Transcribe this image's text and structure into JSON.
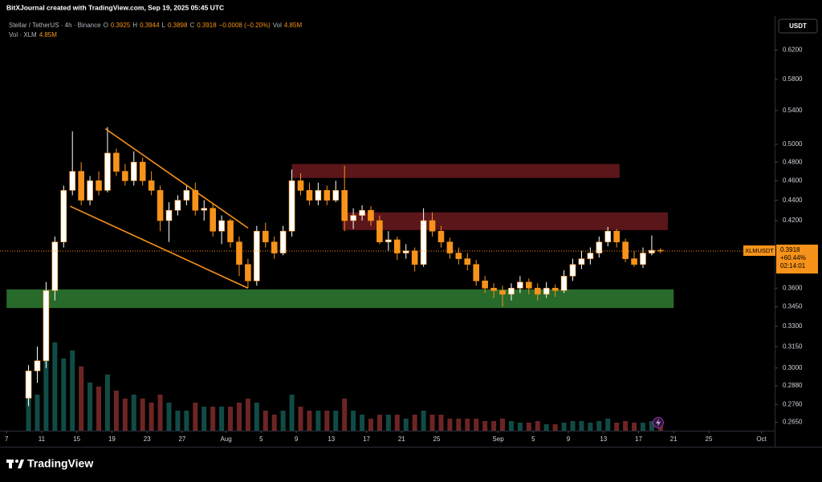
{
  "header": {
    "credit": "BitXJournal created with TradingView.com, Sep 19, 2025 05:45 UTC",
    "brand": "TradingView"
  },
  "chart_data": {
    "type": "candlestick",
    "symbol": "Stellar / TetherUS · 4h · Binance",
    "ohlc": [
      {
        "label": "O",
        "value": 0.3925
      },
      {
        "label": "H",
        "value": 0.3944
      },
      {
        "label": "L",
        "value": 0.3898
      },
      {
        "label": "C",
        "value": 0.3918
      }
    ],
    "change": "−0.0008 (−0.20%)",
    "vol_label": "Vol",
    "vol_value": "4.85M",
    "volume_title": "Vol · XLM",
    "volume_value": "4.85M",
    "currency": "USDT",
    "price_tag": {
      "symbol": "XLMUSDT",
      "value": 0.3918,
      "change": "+60.44%",
      "countdown": "02:14:01",
      "color": "#f7931a"
    },
    "x": [
      "2025-07-09",
      "2025-07-10",
      "2025-07-11",
      "2025-07-12",
      "2025-07-13",
      "2025-07-14",
      "2025-07-15",
      "2025-07-16",
      "2025-07-17",
      "2025-07-18",
      "2025-07-19",
      "2025-07-20",
      "2025-07-21",
      "2025-07-22",
      "2025-07-23",
      "2025-07-24",
      "2025-07-25",
      "2025-07-26",
      "2025-07-27",
      "2025-07-28",
      "2025-07-29",
      "2025-07-30",
      "2025-07-31",
      "2025-08-01",
      "2025-08-02",
      "2025-08-03",
      "2025-08-04",
      "2025-08-05",
      "2025-08-06",
      "2025-08-07",
      "2025-08-08",
      "2025-08-09",
      "2025-08-10",
      "2025-08-11",
      "2025-08-12",
      "2025-08-13",
      "2025-08-14",
      "2025-08-15",
      "2025-08-16",
      "2025-08-17",
      "2025-08-18",
      "2025-08-19",
      "2025-08-20",
      "2025-08-21",
      "2025-08-22",
      "2025-08-23",
      "2025-08-24",
      "2025-08-25",
      "2025-08-26",
      "2025-08-27",
      "2025-08-28",
      "2025-08-29",
      "2025-08-30",
      "2025-08-31",
      "2025-09-01",
      "2025-09-02",
      "2025-09-03",
      "2025-09-04",
      "2025-09-05",
      "2025-09-06",
      "2025-09-07",
      "2025-09-08",
      "2025-09-09",
      "2025-09-10",
      "2025-09-11",
      "2025-09-12",
      "2025-09-13",
      "2025-09-14",
      "2025-09-15",
      "2025-09-16",
      "2025-09-17",
      "2025-09-18",
      "2025-09-19"
    ],
    "open": [
      0.28,
      0.298,
      0.305,
      0.358,
      0.4,
      0.45,
      0.47,
      0.44,
      0.46,
      0.45,
      0.49,
      0.47,
      0.46,
      0.48,
      0.46,
      0.45,
      0.42,
      0.43,
      0.44,
      0.45,
      0.43,
      0.432,
      0.41,
      0.42,
      0.4,
      0.38,
      0.366,
      0.41,
      0.4,
      0.39,
      0.41,
      0.46,
      0.45,
      0.44,
      0.45,
      0.44,
      0.45,
      0.42,
      0.425,
      0.43,
      0.42,
      0.4,
      0.402,
      0.39,
      0.392,
      0.38,
      0.42,
      0.41,
      0.4,
      0.39,
      0.385,
      0.38,
      0.366,
      0.36,
      0.358,
      0.355,
      0.36,
      0.365,
      0.36,
      0.355,
      0.36,
      0.358,
      0.37,
      0.38,
      0.385,
      0.39,
      0.4,
      0.41,
      0.4,
      0.385,
      0.38,
      0.39,
      0.3925
    ],
    "high": [
      0.302,
      0.315,
      0.365,
      0.405,
      0.455,
      0.515,
      0.48,
      0.465,
      0.47,
      0.52,
      0.495,
      0.478,
      0.492,
      0.485,
      0.47,
      0.455,
      0.438,
      0.445,
      0.455,
      0.458,
      0.44,
      0.436,
      0.425,
      0.422,
      0.405,
      0.385,
      0.415,
      0.418,
      0.405,
      0.415,
      0.472,
      0.468,
      0.458,
      0.458,
      0.455,
      0.46,
      0.476,
      0.432,
      0.435,
      0.434,
      0.425,
      0.41,
      0.405,
      0.398,
      0.395,
      0.432,
      0.428,
      0.415,
      0.404,
      0.395,
      0.39,
      0.384,
      0.37,
      0.364,
      0.362,
      0.364,
      0.37,
      0.368,
      0.364,
      0.365,
      0.363,
      0.375,
      0.385,
      0.392,
      0.395,
      0.405,
      0.414,
      0.412,
      0.403,
      0.392,
      0.395,
      0.406,
      0.3944
    ],
    "low": [
      0.275,
      0.29,
      0.3,
      0.35,
      0.395,
      0.445,
      0.435,
      0.435,
      0.445,
      0.448,
      0.465,
      0.455,
      0.455,
      0.455,
      0.445,
      0.41,
      0.4,
      0.425,
      0.435,
      0.425,
      0.42,
      0.405,
      0.398,
      0.395,
      0.37,
      0.36,
      0.362,
      0.395,
      0.385,
      0.388,
      0.405,
      0.445,
      0.435,
      0.435,
      0.435,
      0.438,
      0.41,
      0.412,
      0.42,
      0.415,
      0.398,
      0.392,
      0.384,
      0.385,
      0.374,
      0.378,
      0.405,
      0.395,
      0.385,
      0.38,
      0.375,
      0.362,
      0.356,
      0.352,
      0.345,
      0.35,
      0.356,
      0.355,
      0.35,
      0.352,
      0.353,
      0.356,
      0.366,
      0.376,
      0.38,
      0.386,
      0.396,
      0.395,
      0.382,
      0.378,
      0.377,
      0.388,
      0.3898
    ],
    "close": [
      0.298,
      0.305,
      0.358,
      0.4,
      0.45,
      0.47,
      0.44,
      0.46,
      0.45,
      0.49,
      0.47,
      0.46,
      0.48,
      0.46,
      0.45,
      0.42,
      0.43,
      0.44,
      0.45,
      0.43,
      0.432,
      0.41,
      0.42,
      0.4,
      0.38,
      0.366,
      0.41,
      0.4,
      0.39,
      0.41,
      0.46,
      0.45,
      0.44,
      0.45,
      0.44,
      0.45,
      0.42,
      0.425,
      0.43,
      0.42,
      0.4,
      0.402,
      0.39,
      0.392,
      0.38,
      0.42,
      0.41,
      0.4,
      0.39,
      0.385,
      0.38,
      0.366,
      0.36,
      0.358,
      0.355,
      0.36,
      0.365,
      0.36,
      0.355,
      0.36,
      0.358,
      0.37,
      0.38,
      0.385,
      0.39,
      0.4,
      0.41,
      0.4,
      0.385,
      0.38,
      0.39,
      0.3925,
      0.3918
    ],
    "volume": [
      40,
      45,
      130,
      110,
      90,
      100,
      80,
      60,
      55,
      70,
      50,
      40,
      45,
      40,
      35,
      45,
      35,
      25,
      25,
      35,
      30,
      30,
      30,
      30,
      35,
      40,
      35,
      25,
      20,
      25,
      45,
      30,
      25,
      25,
      25,
      25,
      40,
      25,
      20,
      15,
      20,
      20,
      20,
      15,
      20,
      25,
      20,
      20,
      15,
      15,
      15,
      15,
      12,
      12,
      15,
      12,
      10,
      10,
      12,
      8,
      8,
      10,
      12,
      12,
      10,
      12,
      15,
      10,
      12,
      10,
      10,
      12,
      8
    ],
    "up_color": "#ffffff",
    "down_color": "#f7931a",
    "ylim": [
      0.26,
      0.67
    ],
    "log_scale": true,
    "yticks": [
      {
        "value": 0.62,
        "label": "0.6200"
      },
      {
        "value": 0.58,
        "label": "0.5800"
      },
      {
        "value": 0.54,
        "label": "0.5400"
      },
      {
        "value": 0.5,
        "label": "0.5000"
      },
      {
        "value": 0.48,
        "label": "0.4800"
      },
      {
        "value": 0.46,
        "label": "0.4600"
      },
      {
        "value": 0.44,
        "label": "0.4400"
      },
      {
        "value": 0.42,
        "label": "0.4200"
      },
      {
        "value": 0.36,
        "label": "0.3600"
      },
      {
        "value": 0.345,
        "label": "0.3450"
      },
      {
        "value": 0.33,
        "label": "0.3300"
      },
      {
        "value": 0.315,
        "label": "0.3150"
      },
      {
        "value": 0.3,
        "label": "0.3000"
      },
      {
        "value": 0.288,
        "label": "0.2880"
      },
      {
        "value": 0.276,
        "label": "0.2760"
      },
      {
        "value": 0.265,
        "label": "0.2650"
      }
    ],
    "xlim": [
      "2025-07-06T06:00",
      "2025-10-02T12:00"
    ],
    "xticks": [
      {
        "value": "2025-07-07",
        "label": "7"
      },
      {
        "value": "2025-07-11",
        "label": "11"
      },
      {
        "value": "2025-07-15",
        "label": "15"
      },
      {
        "value": "2025-07-19",
        "label": "19"
      },
      {
        "value": "2025-07-23",
        "label": "23"
      },
      {
        "value": "2025-07-27",
        "label": "27"
      },
      {
        "value": "2025-08-01",
        "label": "Aug"
      },
      {
        "value": "2025-08-05",
        "label": "5"
      },
      {
        "value": "2025-08-09",
        "label": "9"
      },
      {
        "value": "2025-08-13",
        "label": "13"
      },
      {
        "value": "2025-08-17",
        "label": "17"
      },
      {
        "value": "2025-08-21",
        "label": "21"
      },
      {
        "value": "2025-08-25",
        "label": "25"
      },
      {
        "value": "2025-09-01",
        "label": "Sep"
      },
      {
        "value": "2025-09-05",
        "label": "5"
      },
      {
        "value": "2025-09-09",
        "label": "9"
      },
      {
        "value": "2025-09-13",
        "label": "13"
      },
      {
        "value": "2025-09-17",
        "label": "17"
      },
      {
        "value": "2025-09-21",
        "label": "21"
      },
      {
        "value": "2025-09-25",
        "label": "25"
      },
      {
        "value": "2025-10-01",
        "label": "Oct"
      }
    ],
    "zones": [
      {
        "x": [
          "2025-08-08T12:00",
          "2025-09-14T20:00"
        ],
        "y": [
          0.463,
          0.478
        ],
        "color": "#6b1a1f"
      },
      {
        "x": [
          "2025-08-14T06:00",
          "2025-09-20T08:00"
        ],
        "y": [
          0.411,
          0.428
        ],
        "color": "#6b1a1f"
      },
      {
        "x": [
          "2025-07-07",
          "2025-09-21T00:00"
        ],
        "y": [
          0.344,
          0.359
        ],
        "color": "#2e7d32"
      }
    ],
    "trendlines": [
      {
        "x": [
          "2025-07-18T06:00",
          "2025-08-03T12:00"
        ],
        "y": [
          0.518,
          0.413
        ],
        "color": "#f7931a"
      },
      {
        "x": [
          "2025-07-14T06:00",
          "2025-08-03T12:00"
        ],
        "y": [
          0.434,
          0.36
        ],
        "color": "#f7931a"
      }
    ]
  }
}
